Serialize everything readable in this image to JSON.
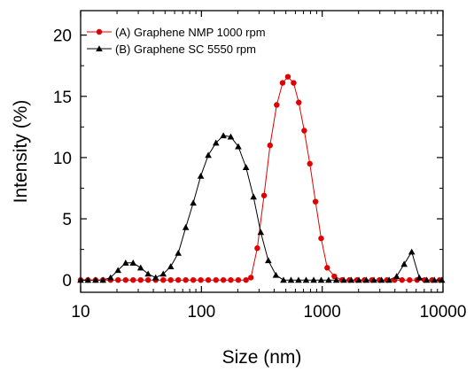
{
  "chart_data": {
    "type": "scatter",
    "xlabel": "Size (nm)",
    "ylabel": "Intensity (%)",
    "xscale": "log",
    "xlim": [
      10,
      10000
    ],
    "ylim": [
      -1,
      22
    ],
    "xticks": [
      10,
      100,
      1000,
      10000
    ],
    "xtick_labels": [
      "10",
      "100",
      "1000",
      "10000"
    ],
    "yticks": [
      0,
      5,
      10,
      15,
      20
    ],
    "ytick_labels": [
      "0",
      "5",
      "10",
      "15",
      "20"
    ],
    "grid": false,
    "legend_position": "top-left",
    "series": [
      {
        "name": "(A) Graphene NMP 1000 rpm",
        "color": "#e00000",
        "marker": "circle",
        "x": [
          10,
          11.5,
          13.3,
          15.3,
          17.7,
          20.4,
          23.6,
          27.2,
          31.4,
          36.2,
          41.8,
          48.3,
          55.7,
          64.3,
          74.2,
          85.6,
          98.8,
          114,
          132,
          152,
          175,
          202,
          234,
          257,
          290,
          330,
          370,
          420,
          470,
          520,
          580,
          640,
          710,
          790,
          880,
          980,
          1100,
          1260,
          1460,
          1680,
          1940,
          2240,
          2580,
          2980,
          3440,
          3970,
          4580,
          5290,
          6100,
          7040,
          8130,
          9380
        ],
        "y": [
          0,
          0,
          0,
          0,
          0,
          0,
          0,
          0,
          0,
          0,
          0,
          0,
          0,
          0,
          0,
          0,
          0,
          0,
          0,
          0,
          0,
          0,
          0,
          0.2,
          2.6,
          6.9,
          11.0,
          14.3,
          16.1,
          16.6,
          16.1,
          14.5,
          12.2,
          9.5,
          6.4,
          3.4,
          1.0,
          0.3,
          0,
          0,
          0,
          0,
          0,
          0,
          0,
          0,
          0,
          0,
          0,
          0,
          0,
          0
        ]
      },
      {
        "name": "(B) Graphene SC 5550 rpm",
        "color": "#000000",
        "marker": "triangle",
        "x": [
          10,
          11.5,
          13.3,
          15.3,
          17.7,
          20.4,
          23.6,
          27.2,
          31.4,
          36.2,
          41.8,
          48.3,
          55.7,
          64.3,
          74.2,
          85.6,
          98.8,
          114,
          132,
          152,
          175,
          202,
          234,
          270,
          310,
          358,
          414,
          478,
          552,
          637,
          736,
          850,
          981,
          1130,
          1310,
          1510,
          1740,
          2010,
          2320,
          2680,
          3100,
          3580,
          4130,
          4770,
          5510,
          6360,
          7340,
          8480,
          9790
        ],
        "y": [
          0,
          0,
          0,
          0,
          0.2,
          0.8,
          1.4,
          1.4,
          1.0,
          0.5,
          0.2,
          0.5,
          1.1,
          2.2,
          4.3,
          6.3,
          8.5,
          10.2,
          11.2,
          11.8,
          11.7,
          10.9,
          9.2,
          6.8,
          3.9,
          1.6,
          0.4,
          0,
          0,
          0,
          0,
          0,
          0,
          0,
          0,
          0,
          0,
          0,
          0,
          0,
          0,
          0,
          0.3,
          1.3,
          2.3,
          0.2,
          0,
          0,
          0
        ]
      }
    ]
  }
}
